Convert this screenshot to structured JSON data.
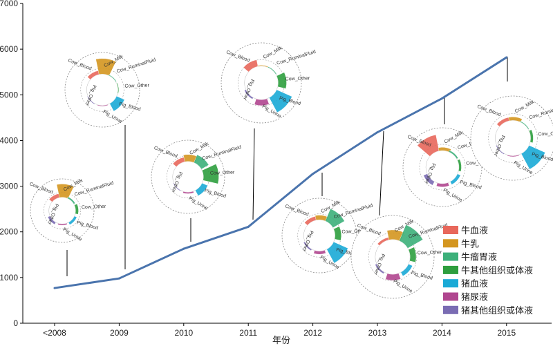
{
  "chart_data": {
    "type": "line",
    "title": "",
    "xlabel": "年份",
    "ylabel": "",
    "categories": [
      "<2008",
      "2009",
      "2010",
      "2011",
      "2012",
      "2013",
      "2014",
      "2015"
    ],
    "series": [
      {
        "values": [
          770,
          980,
          1630,
          2110,
          3270,
          4180,
          4920,
          5820
        ]
      }
    ],
    "ylim": [
      0,
      7000
    ],
    "yticks": [
      0,
      1000,
      2000,
      3000,
      4000,
      5000,
      6000,
      7000
    ],
    "grid": false,
    "line_color": "#4a74ad",
    "legend": {
      "placement": "bottom-right",
      "items": [
        {
          "label": "牛血液",
          "color": "#e8675b"
        },
        {
          "label": "牛乳",
          "color": "#d4961f"
        },
        {
          "label": "牛瘤胃液",
          "color": "#3cb07a"
        },
        {
          "label": "牛其他组织或体液",
          "color": "#2e9e3e"
        },
        {
          "label": "猪血液",
          "color": "#1aaad6"
        },
        {
          "label": "猪尿液",
          "color": "#b0468f"
        },
        {
          "label": "猪其他组织或体液",
          "color": "#7a6cb3"
        }
      ]
    },
    "sector_labels": [
      "Cow_Blood",
      "Cow_Milk",
      "Cow_RuminalFluid",
      "Cow_Other",
      "Pig_Blood",
      "Pig_Urine",
      "Pig_Other"
    ],
    "rose_insets": [
      {
        "year": "<2008",
        "values": [
          0.3,
          1.0,
          0.12,
          0.22,
          0.2,
          0.1,
          0.18
        ]
      },
      {
        "year": "2009",
        "values": [
          0.25,
          1.0,
          0.05,
          0.05,
          0.55,
          0.05,
          0.05
        ]
      },
      {
        "year": "2010",
        "values": [
          0.3,
          0.45,
          0.55,
          1.0,
          0.4,
          0.1,
          0.05
        ]
      },
      {
        "year": "2011",
        "values": [
          0.4,
          0.05,
          0.05,
          0.5,
          1.0,
          0.35,
          0.1
        ]
      },
      {
        "year": "2012",
        "values": [
          0.25,
          0.3,
          0.85,
          0.4,
          1.0,
          0.2,
          0.1
        ]
      },
      {
        "year": "2013",
        "values": [
          0.15,
          0.55,
          1.0,
          0.35,
          0.25,
          0.35,
          0.1
        ]
      },
      {
        "year": "2014",
        "values": [
          1.0,
          0.2,
          0.1,
          0.15,
          0.2,
          0.2,
          0.25
        ]
      },
      {
        "year": "2015",
        "values": [
          0.2,
          0.2,
          0.05,
          0.15,
          1.0,
          0.05,
          0.05
        ]
      }
    ]
  }
}
